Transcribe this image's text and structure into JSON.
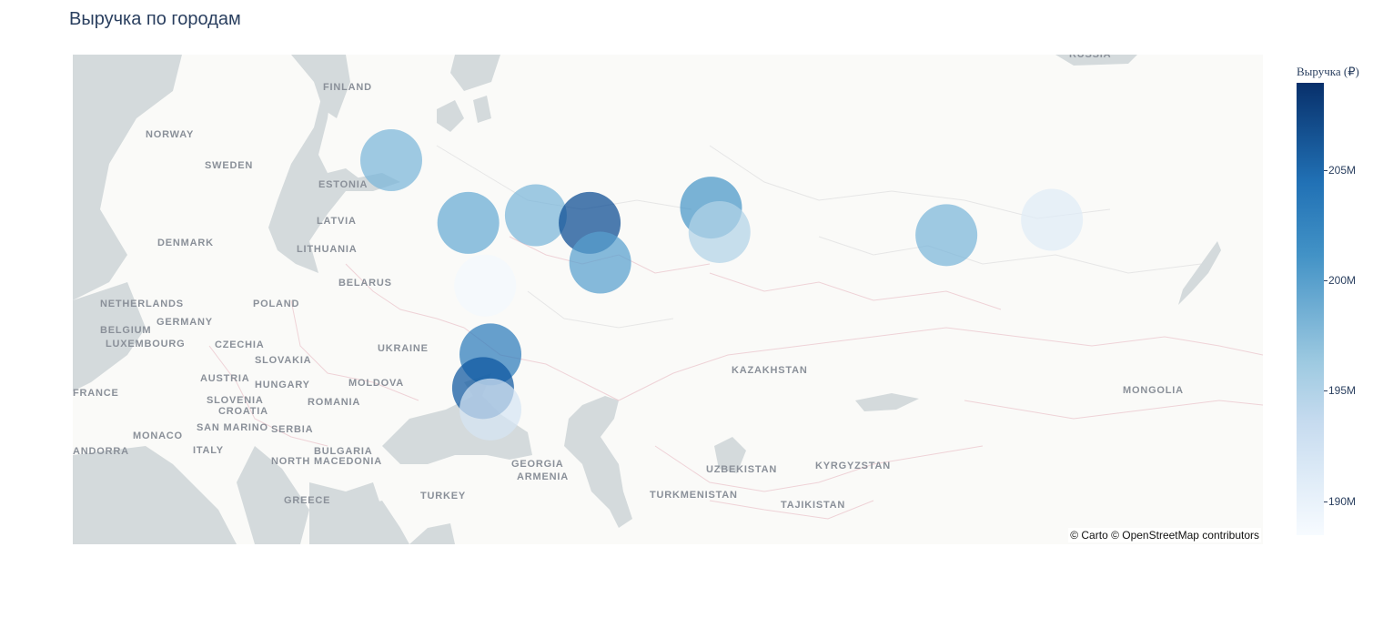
{
  "title": "Выручка по городам",
  "attribution": "© Carto © OpenStreetMap contributors",
  "map": {
    "basemap": "carto-positron",
    "water_color": "#d4dadc",
    "land_color": "#fafaf8",
    "labels": [
      {
        "id": "russia",
        "text": "RUSSIA"
      },
      {
        "id": "finland",
        "text": "FINLAND"
      },
      {
        "id": "norway",
        "text": "NORWAY"
      },
      {
        "id": "sweden",
        "text": "SWEDEN"
      },
      {
        "id": "estonia",
        "text": "ESTONIA"
      },
      {
        "id": "latvia",
        "text": "LATVIA"
      },
      {
        "id": "denmark",
        "text": "DENMARK"
      },
      {
        "id": "lithuania",
        "text": "LITHUANIA"
      },
      {
        "id": "belarus",
        "text": "BELARUS"
      },
      {
        "id": "netherlands",
        "text": "NETHERLANDS"
      },
      {
        "id": "poland",
        "text": "POLAND"
      },
      {
        "id": "belgium",
        "text": "BELGIUM"
      },
      {
        "id": "germany",
        "text": "GERMANY"
      },
      {
        "id": "luxembourg",
        "text": "LUXEMBOURG"
      },
      {
        "id": "czechia",
        "text": "CZECHIA"
      },
      {
        "id": "ukraine",
        "text": "UKRAINE"
      },
      {
        "id": "slovakia",
        "text": "SLOVAKIA"
      },
      {
        "id": "france",
        "text": "FRANCE"
      },
      {
        "id": "austria",
        "text": "AUSTRIA"
      },
      {
        "id": "hungary",
        "text": "HUNGARY"
      },
      {
        "id": "moldova",
        "text": "MOLDOVA"
      },
      {
        "id": "slovenia",
        "text": "SLOVENIA"
      },
      {
        "id": "croatia",
        "text": "CROATIA"
      },
      {
        "id": "romania",
        "text": "ROMANIA"
      },
      {
        "id": "san-marino",
        "text": "SAN MARINO"
      },
      {
        "id": "monaco",
        "text": "MONACO"
      },
      {
        "id": "serbia",
        "text": "SERBIA"
      },
      {
        "id": "andorra",
        "text": "ANDORRA"
      },
      {
        "id": "italy",
        "text": "ITALY"
      },
      {
        "id": "bulgaria",
        "text": "BULGARIA"
      },
      {
        "id": "north-macedonia",
        "text": "NORTH MACEDONIA"
      },
      {
        "id": "georgia",
        "text": "GEORGIA"
      },
      {
        "id": "armenia",
        "text": "ARMENIA"
      },
      {
        "id": "greece",
        "text": "GREECE"
      },
      {
        "id": "turkey",
        "text": "TURKEY"
      },
      {
        "id": "kazakhstan",
        "text": "KAZAKHSTAN"
      },
      {
        "id": "uzbekistan",
        "text": "UZBEKISTAN"
      },
      {
        "id": "kyrgyzstan",
        "text": "KYRGYZSTAN"
      },
      {
        "id": "turkmenistan",
        "text": "TURKMENISTAN"
      },
      {
        "id": "tajikistan",
        "text": "TAJIKISTAN"
      },
      {
        "id": "mongolia",
        "text": "MONGOLIA"
      }
    ]
  },
  "chart_data": {
    "type": "scatter",
    "marker": "bubble",
    "colorscale": "Blues",
    "colorbar_title": "Выручка (₽)",
    "color_range": [
      188.5,
      209
    ],
    "colorbar_ticks": [
      "205M",
      "200M",
      "195M",
      "190M"
    ],
    "colorbar_tick_values": [
      205,
      200,
      195,
      190
    ],
    "points": [
      {
        "lon": 30.3,
        "lat": 59.9,
        "value": 198
      },
      {
        "lon": 37.6,
        "lat": 55.8,
        "value": 199
      },
      {
        "lon": 44.0,
        "lat": 56.3,
        "value": 198
      },
      {
        "lon": 49.1,
        "lat": 55.8,
        "value": 207
      },
      {
        "lon": 50.1,
        "lat": 53.2,
        "value": 200
      },
      {
        "lon": 60.6,
        "lat": 56.8,
        "value": 201
      },
      {
        "lon": 61.4,
        "lat": 55.2,
        "value": 195
      },
      {
        "lon": 82.9,
        "lat": 55.0,
        "value": 198
      },
      {
        "lon": 92.9,
        "lat": 56.0,
        "value": 191
      },
      {
        "lon": 39.2,
        "lat": 51.7,
        "value": 189
      },
      {
        "lon": 39.7,
        "lat": 47.2,
        "value": 203
      },
      {
        "lon": 39.0,
        "lat": 45.0,
        "value": 206
      },
      {
        "lon": 39.7,
        "lat": 43.6,
        "value": 192
      }
    ]
  }
}
